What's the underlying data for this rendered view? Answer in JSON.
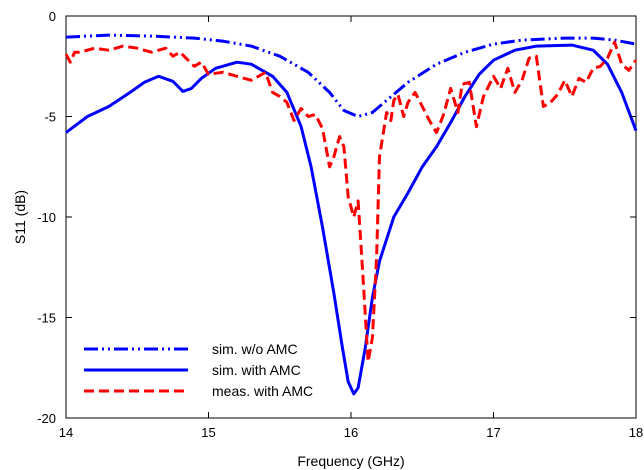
{
  "chart_data": {
    "type": "line",
    "xlabel": "Frequency (GHz)",
    "ylabel": "S11 (dB)",
    "xlim": [
      14,
      18
    ],
    "ylim": [
      -20,
      0
    ],
    "xticks": [
      14,
      15,
      16,
      17,
      18
    ],
    "yticks": [
      0,
      -5,
      -10,
      -15,
      -20
    ],
    "x_tick_labels": [
      "14",
      "15",
      "16",
      "17",
      "18"
    ],
    "y_tick_labels": [
      "0",
      "-5",
      "-10",
      "-15",
      "-20"
    ],
    "grid": false,
    "legend_position": "bottom-left",
    "series": [
      {
        "name": "sim. w/o AMC",
        "color": "#0000ff",
        "style": "dash-dot-dot",
        "points": [
          [
            14.0,
            -1.05
          ],
          [
            14.3,
            -0.95
          ],
          [
            14.6,
            -1.0
          ],
          [
            14.9,
            -1.1
          ],
          [
            15.1,
            -1.25
          ],
          [
            15.3,
            -1.5
          ],
          [
            15.5,
            -2.0
          ],
          [
            15.7,
            -2.8
          ],
          [
            15.85,
            -3.8
          ],
          [
            15.95,
            -4.7
          ],
          [
            16.05,
            -5.0
          ],
          [
            16.15,
            -4.8
          ],
          [
            16.25,
            -4.2
          ],
          [
            16.4,
            -3.3
          ],
          [
            16.6,
            -2.4
          ],
          [
            16.8,
            -1.8
          ],
          [
            17.0,
            -1.4
          ],
          [
            17.2,
            -1.2
          ],
          [
            17.5,
            -1.1
          ],
          [
            17.7,
            -1.1
          ],
          [
            17.85,
            -1.2
          ],
          [
            18.0,
            -1.4
          ]
        ]
      },
      {
        "name": "sim. with AMC",
        "color": "#0000ff",
        "style": "solid",
        "points": [
          [
            14.0,
            -5.8
          ],
          [
            14.15,
            -5.0
          ],
          [
            14.3,
            -4.5
          ],
          [
            14.45,
            -3.8
          ],
          [
            14.55,
            -3.3
          ],
          [
            14.65,
            -3.0
          ],
          [
            14.75,
            -3.25
          ],
          [
            14.82,
            -3.75
          ],
          [
            14.88,
            -3.6
          ],
          [
            14.95,
            -3.1
          ],
          [
            15.05,
            -2.6
          ],
          [
            15.2,
            -2.3
          ],
          [
            15.3,
            -2.4
          ],
          [
            15.45,
            -3.0
          ],
          [
            15.55,
            -3.8
          ],
          [
            15.65,
            -5.5
          ],
          [
            15.72,
            -7.5
          ],
          [
            15.8,
            -10.5
          ],
          [
            15.88,
            -13.8
          ],
          [
            15.94,
            -16.5
          ],
          [
            15.98,
            -18.2
          ],
          [
            16.02,
            -18.8
          ],
          [
            16.05,
            -18.5
          ],
          [
            16.1,
            -16.5
          ],
          [
            16.15,
            -14.0
          ],
          [
            16.2,
            -12.2
          ],
          [
            16.3,
            -10.0
          ],
          [
            16.4,
            -8.8
          ],
          [
            16.5,
            -7.5
          ],
          [
            16.6,
            -6.5
          ],
          [
            16.7,
            -5.3
          ],
          [
            16.8,
            -4.0
          ],
          [
            16.9,
            -2.9
          ],
          [
            17.0,
            -2.2
          ],
          [
            17.15,
            -1.7
          ],
          [
            17.3,
            -1.5
          ],
          [
            17.55,
            -1.45
          ],
          [
            17.7,
            -1.7
          ],
          [
            17.8,
            -2.4
          ],
          [
            17.9,
            -3.8
          ],
          [
            18.0,
            -5.7
          ]
        ]
      },
      {
        "name": "meas. with AMC",
        "color": "#ff0000",
        "style": "dashed",
        "points": [
          [
            14.0,
            -1.9
          ],
          [
            14.03,
            -2.3
          ],
          [
            14.06,
            -1.8
          ],
          [
            14.1,
            -1.8
          ],
          [
            14.2,
            -1.6
          ],
          [
            14.3,
            -1.7
          ],
          [
            14.4,
            -1.5
          ],
          [
            14.5,
            -1.6
          ],
          [
            14.6,
            -1.8
          ],
          [
            14.7,
            -1.6
          ],
          [
            14.75,
            -2.0
          ],
          [
            14.8,
            -1.8
          ],
          [
            14.9,
            -2.5
          ],
          [
            14.95,
            -2.3
          ],
          [
            15.0,
            -2.9
          ],
          [
            15.1,
            -2.8
          ],
          [
            15.2,
            -3.0
          ],
          [
            15.3,
            -3.2
          ],
          [
            15.4,
            -2.8
          ],
          [
            15.45,
            -3.8
          ],
          [
            15.5,
            -4.0
          ],
          [
            15.55,
            -4.3
          ],
          [
            15.6,
            -5.2
          ],
          [
            15.65,
            -4.6
          ],
          [
            15.7,
            -5.0
          ],
          [
            15.75,
            -4.9
          ],
          [
            15.8,
            -5.6
          ],
          [
            15.85,
            -7.5
          ],
          [
            15.88,
            -7.0
          ],
          [
            15.92,
            -6.0
          ],
          [
            15.95,
            -6.5
          ],
          [
            15.98,
            -9.0
          ],
          [
            16.02,
            -10.0
          ],
          [
            16.05,
            -9.2
          ],
          [
            16.08,
            -12.5
          ],
          [
            16.12,
            -17.2
          ],
          [
            16.15,
            -16.0
          ],
          [
            16.18,
            -12.0
          ],
          [
            16.2,
            -7.0
          ],
          [
            16.25,
            -4.8
          ],
          [
            16.28,
            -5.2
          ],
          [
            16.3,
            -4.2
          ],
          [
            16.33,
            -3.9
          ],
          [
            16.37,
            -5.0
          ],
          [
            16.4,
            -4.3
          ],
          [
            16.45,
            -3.8
          ],
          [
            16.5,
            -4.5
          ],
          [
            16.55,
            -5.2
          ],
          [
            16.6,
            -5.8
          ],
          [
            16.65,
            -4.9
          ],
          [
            16.7,
            -3.6
          ],
          [
            16.75,
            -4.8
          ],
          [
            16.78,
            -3.4
          ],
          [
            16.83,
            -3.3
          ],
          [
            16.88,
            -5.5
          ],
          [
            16.93,
            -4.0
          ],
          [
            17.0,
            -3.0
          ],
          [
            17.05,
            -3.6
          ],
          [
            17.1,
            -2.6
          ],
          [
            17.15,
            -3.8
          ],
          [
            17.2,
            -3.2
          ],
          [
            17.25,
            -2.1
          ],
          [
            17.3,
            -2.0
          ],
          [
            17.35,
            -4.5
          ],
          [
            17.4,
            -4.3
          ],
          [
            17.45,
            -3.9
          ],
          [
            17.5,
            -3.2
          ],
          [
            17.55,
            -4.0
          ],
          [
            17.6,
            -3.1
          ],
          [
            17.65,
            -3.3
          ],
          [
            17.7,
            -2.6
          ],
          [
            17.75,
            -2.5
          ],
          [
            17.8,
            -2.1
          ],
          [
            17.85,
            -1.3
          ],
          [
            17.9,
            -2.4
          ],
          [
            17.95,
            -2.7
          ],
          [
            18.0,
            -2.2
          ]
        ]
      }
    ]
  }
}
